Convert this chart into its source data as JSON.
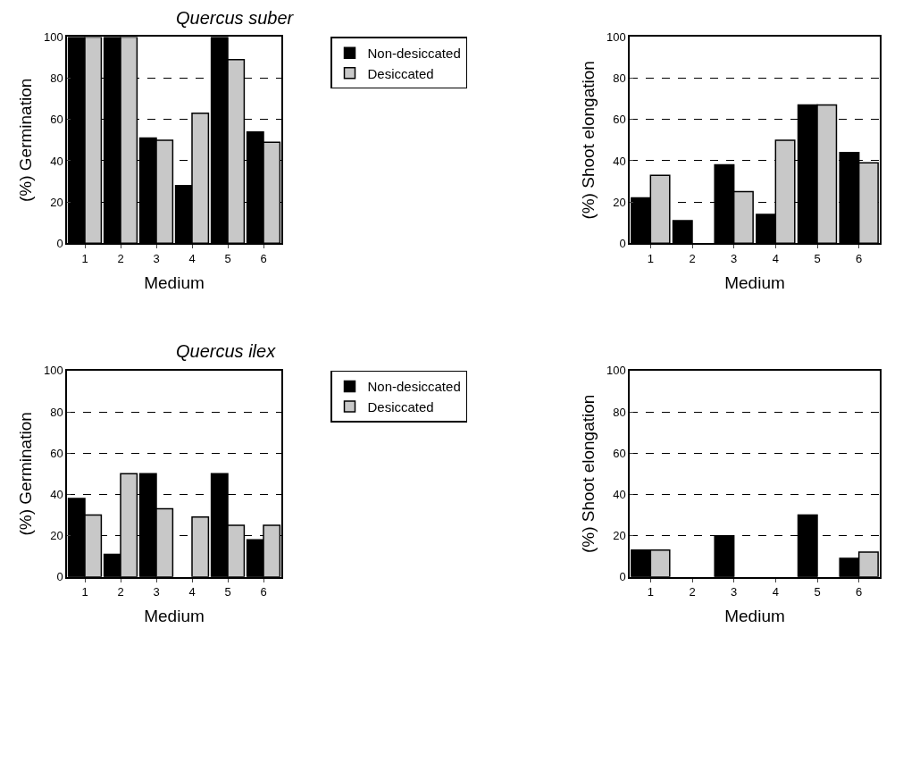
{
  "chart_data": [
    {
      "type": "bar",
      "title": "Quercus suber",
      "xlabel": "Medium",
      "ylabel": "(%) Germination",
      "categories": [
        "1",
        "2",
        "3",
        "4",
        "5",
        "6"
      ],
      "ylim": [
        0,
        100
      ],
      "yticks": [
        0,
        20,
        40,
        60,
        80,
        100
      ],
      "grid": "y",
      "legend": "right",
      "series": [
        {
          "name": "Non-desiccated",
          "color": "#000000",
          "values": [
            100,
            100,
            51,
            28,
            100,
            54
          ]
        },
        {
          "name": "Desiccated",
          "color": "#c8c8c8",
          "values": [
            100,
            100,
            50,
            63,
            89,
            49
          ]
        }
      ]
    },
    {
      "type": "bar",
      "xlabel": "Medium",
      "ylabel": "(%) Shoot elongation",
      "categories": [
        "1",
        "2",
        "3",
        "4",
        "5",
        "6"
      ],
      "ylim": [
        0,
        100
      ],
      "yticks": [
        0,
        20,
        40,
        60,
        80,
        100
      ],
      "grid": "y",
      "series": [
        {
          "color": "#000000",
          "values": [
            22,
            11,
            38,
            14,
            67,
            44
          ]
        },
        {
          "color": "#c8c8c8",
          "values": [
            33,
            0,
            25,
            50,
            67,
            39
          ]
        }
      ]
    },
    {
      "type": "bar",
      "title": "Quercus ilex",
      "xlabel": "Medium",
      "ylabel": "(%) Germination",
      "categories": [
        "1",
        "2",
        "3",
        "4",
        "5",
        "6"
      ],
      "ylim": [
        0,
        100
      ],
      "yticks": [
        0,
        20,
        40,
        60,
        80,
        100
      ],
      "grid": "y",
      "legend": "right",
      "series": [
        {
          "name": "Non-desiccated",
          "color": "#000000",
          "values": [
            38,
            11,
            50,
            0,
            50,
            18
          ]
        },
        {
          "name": "Desiccated",
          "color": "#c8c8c8",
          "values": [
            30,
            50,
            33,
            29,
            25,
            25
          ]
        }
      ]
    },
    {
      "type": "bar",
      "xlabel": "Medium",
      "ylabel": "(%) Shoot elongation",
      "categories": [
        "1",
        "2",
        "3",
        "4",
        "5",
        "6"
      ],
      "ylim": [
        0,
        100
      ],
      "yticks": [
        0,
        20,
        40,
        60,
        80,
        100
      ],
      "grid": "y",
      "series": [
        {
          "color": "#000000",
          "values": [
            13,
            0,
            20,
            0,
            30,
            9
          ]
        },
        {
          "color": "#c8c8c8",
          "values": [
            13,
            0,
            0,
            0,
            0,
            12
          ]
        }
      ]
    }
  ]
}
